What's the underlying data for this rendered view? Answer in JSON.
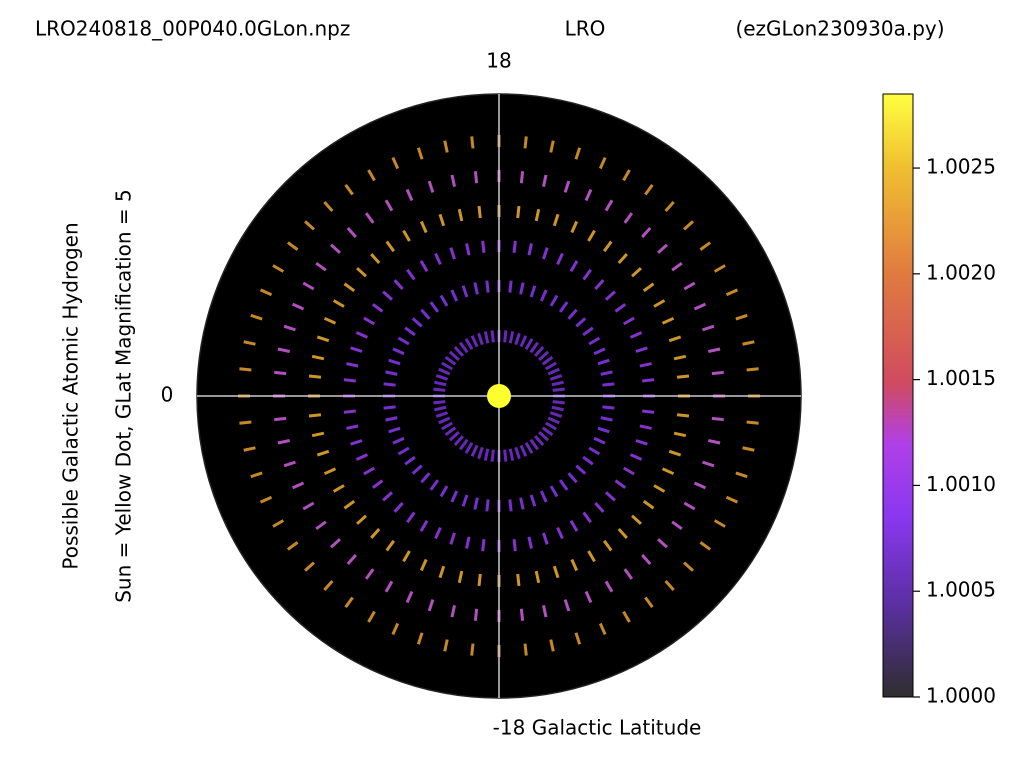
{
  "chart_data": {
    "type": "polar",
    "titles": [
      "LRO240818_00P040.0GLon.npz",
      "LRO",
      "(ezGLon230930a.py)"
    ],
    "ylabel_lines": [
      "Possible Galactic Atomic Hydrogen",
      "Sun = Yellow Dot, GLat Magnification = 5"
    ],
    "top_label": "18",
    "left_label": "0",
    "bottom_label": "-18 Galactic Latitude",
    "colorbar": {
      "lim": [
        1.0,
        1.00285
      ],
      "ticks": [
        {
          "value": 1.0,
          "label": "1.0000"
        },
        {
          "value": 1.0005,
          "label": "1.0005"
        },
        {
          "value": 1.001,
          "label": "1.0010"
        },
        {
          "value": 1.0015,
          "label": "1.0015"
        },
        {
          "value": 1.002,
          "label": "1.0020"
        },
        {
          "value": 1.0025,
          "label": "1.0025"
        }
      ]
    }
  }
}
